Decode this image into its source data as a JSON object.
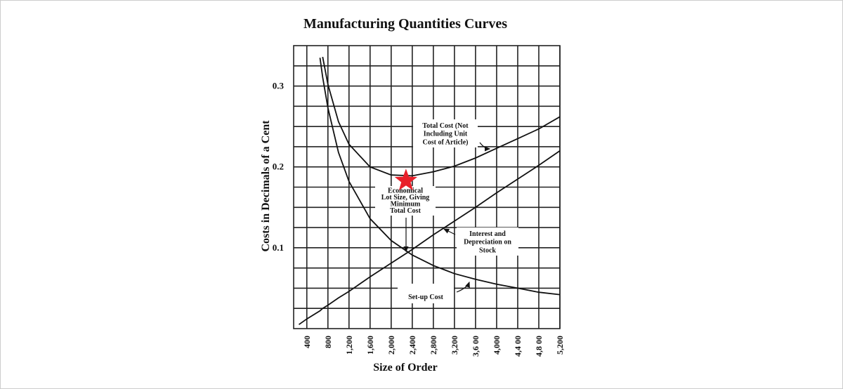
{
  "chart_data": {
    "type": "line",
    "title": "Manufacturing Quantities Curves",
    "x_label": "Size of Order",
    "y_label": "Costs in Decimals of a Cent",
    "x": [
      250,
      400,
      650,
      700,
      800,
      1000,
      1200,
      1600,
      2000,
      2400,
      2800,
      3200,
      3600,
      4000,
      4400,
      4800,
      5200
    ],
    "series": [
      {
        "name": "Set-up Cost",
        "color": "#111111",
        "values": [
          null,
          null,
          0.335,
          0.311,
          0.273,
          0.218,
          0.182,
          0.136,
          0.109,
          0.091,
          0.078,
          0.068,
          0.061,
          0.055,
          0.05,
          0.045,
          0.042
        ]
      },
      {
        "name": "Interest and Depreciation on Stock",
        "color": "#111111",
        "values": [
          0.005,
          0.012,
          0.022,
          0.025,
          0.029,
          0.038,
          0.046,
          0.064,
          0.081,
          0.098,
          0.116,
          0.133,
          0.15,
          0.168,
          0.185,
          0.202,
          0.22
        ]
      },
      {
        "name": "Total Cost (Not Including Unit Cost of Article)",
        "color": "#111111",
        "values": [
          null,
          null,
          null,
          0.336,
          0.302,
          0.256,
          0.228,
          0.2,
          0.19,
          0.189,
          0.194,
          0.201,
          0.211,
          0.223,
          0.235,
          0.247,
          0.262
        ]
      }
    ],
    "xlim": [
      150,
      5200
    ],
    "ylim": [
      0,
      0.35
    ],
    "xticks": [
      {
        "value": 400,
        "label": "400"
      },
      {
        "value": 800,
        "label": "800"
      },
      {
        "value": 1200,
        "label": "1,200"
      },
      {
        "value": 1600,
        "label": "1,600"
      },
      {
        "value": 2000,
        "label": "2,000"
      },
      {
        "value": 2400,
        "label": "2,400"
      },
      {
        "value": 2800,
        "label": "2,800"
      },
      {
        "value": 3200,
        "label": "3,200"
      },
      {
        "value": 3600,
        "label": "3,6 00"
      },
      {
        "value": 4000,
        "label": "4,000"
      },
      {
        "value": 4400,
        "label": "4,4 00"
      },
      {
        "value": 4800,
        "label": "4,8 00"
      },
      {
        "value": 5200,
        "label": "5,200"
      }
    ],
    "yticks": [
      0.1,
      0.2,
      0.3
    ],
    "minor_yticks": [
      0.025,
      0.05,
      0.075,
      0.125,
      0.15,
      0.175,
      0.225,
      0.25,
      0.275,
      0.325
    ],
    "grid": true,
    "annotations": [
      {
        "lines": [
          "Total Cost (Not",
          "Including Unit",
          "Cost of Article)"
        ]
      },
      {
        "lines": [
          "Economical",
          "Lot Size, Giving",
          "Minimum",
          "Total Cost"
        ]
      },
      {
        "lines": [
          "Interest and",
          "Depreciation on",
          "Stock"
        ]
      },
      {
        "lines": [
          "Set-up Cost"
        ]
      }
    ],
    "highlight": {
      "x": 2280,
      "y": 0.183,
      "color": "#e8202a"
    }
  }
}
